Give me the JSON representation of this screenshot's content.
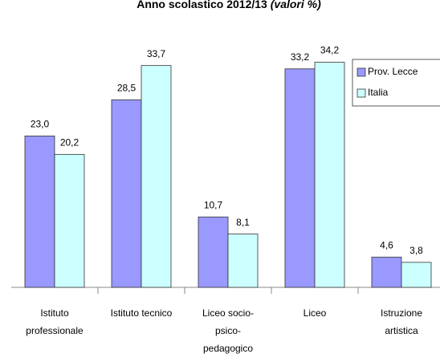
{
  "chart_data": {
    "type": "bar",
    "title": "Anno scolastico 2012/13",
    "title_note": "(valori %)",
    "categories": [
      "Istituto professionale",
      "Istituto tecnico",
      "Liceo socio-psico-pedagogico",
      "Liceo",
      "Istruzione artistica"
    ],
    "series": [
      {
        "name": "Prov. Lecce",
        "color": "#9999ff",
        "values": [
          23.0,
          28.5,
          10.7,
          33.2,
          4.6
        ],
        "value_labels": [
          "23,0",
          "28,5",
          "10,7",
          "33,2",
          "4,6"
        ]
      },
      {
        "name": "Italia",
        "color": "#ccffff",
        "values": [
          20.2,
          33.7,
          8.1,
          34.2,
          3.8
        ],
        "value_labels": [
          "20,2",
          "33,7",
          "8,1",
          "34,2",
          "3,8"
        ]
      }
    ],
    "legend": "top-right"
  }
}
